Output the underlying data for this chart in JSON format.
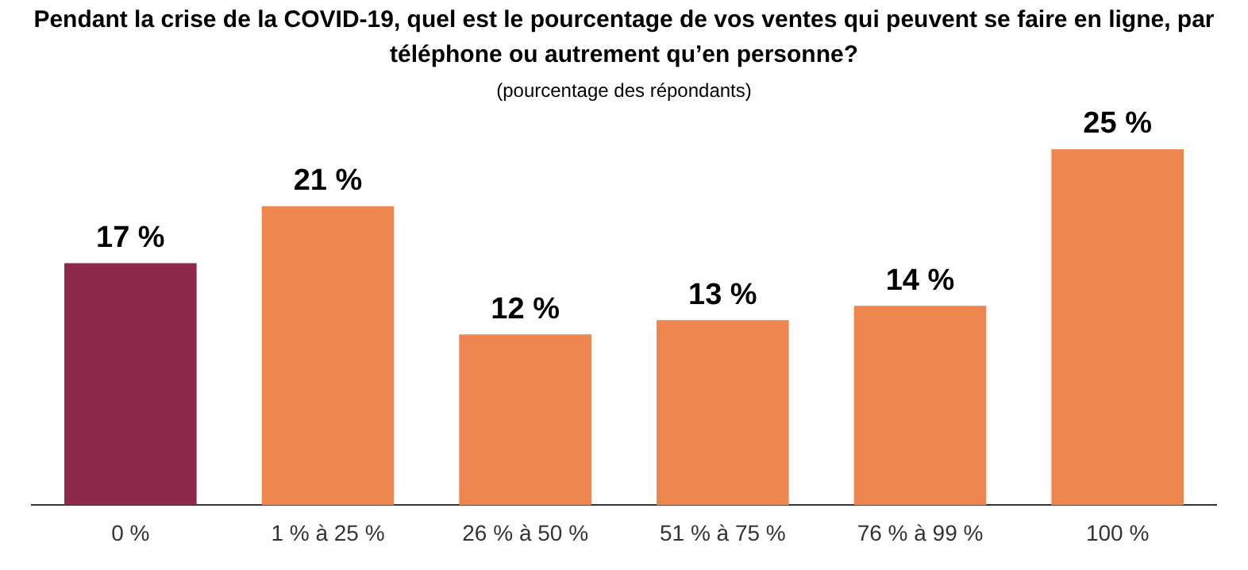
{
  "chart_data": {
    "type": "bar",
    "title": "Pendant la crise de la COVID-19, quel est le pourcentage de vos ventes qui peuvent se faire en ligne, par téléphone ou autrement qu’en personne?",
    "subtitle": "(pourcentage des répondants)",
    "categories": [
      "0 %",
      "1 % à 25 %",
      "26 % à 50 %",
      "51 % à 75 %",
      "76 % à 99 %",
      "100 %"
    ],
    "values": [
      17,
      21,
      12,
      13,
      14,
      25
    ],
    "colors": [
      "#8e294c",
      "#ed864f",
      "#ed864f",
      "#ed864f",
      "#ed864f",
      "#ed864f"
    ],
    "value_labels": [
      "17 %",
      "21 %",
      "12 %",
      "13 %",
      "14 %",
      "25 %"
    ],
    "grid": false,
    "legend": false
  }
}
